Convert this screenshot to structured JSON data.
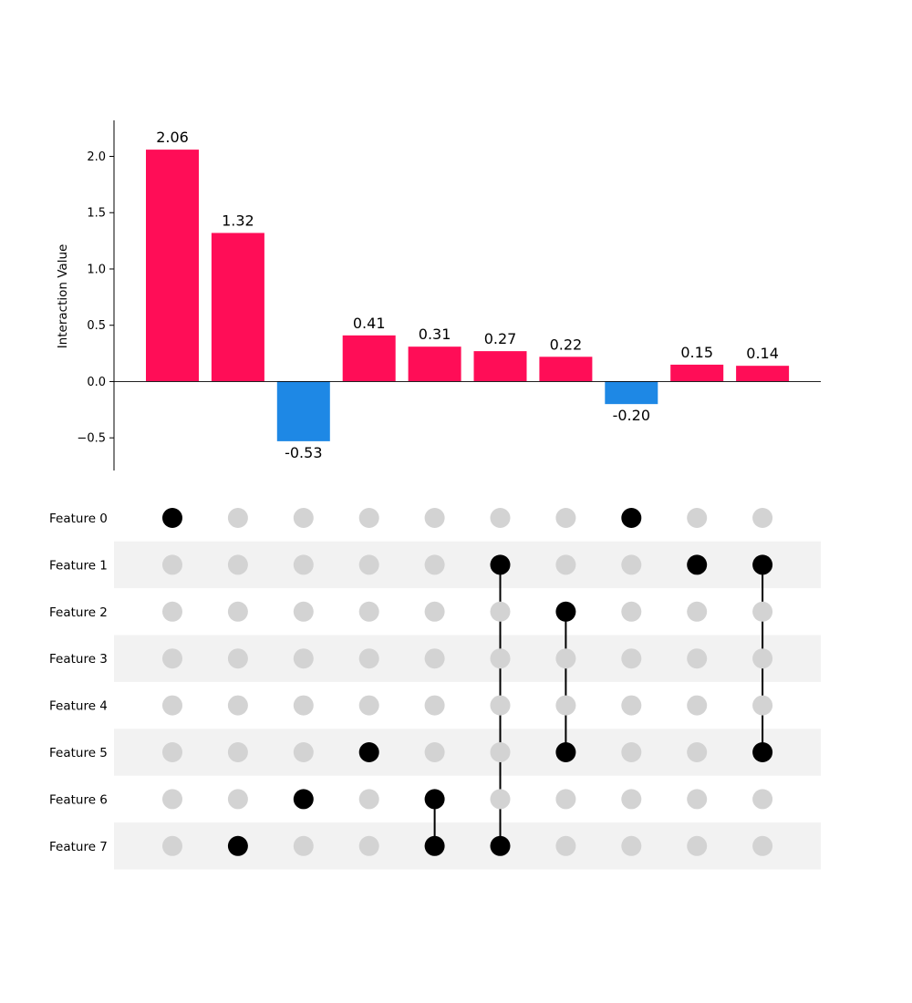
{
  "chart_data": {
    "type": "bar",
    "ylabel": "Interaction Value",
    "ylim": [
      -0.79,
      2.32
    ],
    "yticks": [
      -0.5,
      0.0,
      0.5,
      1.0,
      1.5,
      2.0
    ],
    "ytick_labels": [
      "−0.5",
      "0.0",
      "0.5",
      "1.0",
      "1.5",
      "2.0"
    ],
    "values": [
      2.06,
      1.32,
      -0.53,
      0.41,
      0.31,
      0.27,
      0.22,
      -0.2,
      0.15,
      0.14
    ],
    "value_labels": [
      "2.06",
      "1.32",
      "-0.53",
      "0.41",
      "0.31",
      "0.27",
      "0.22",
      "-0.20",
      "0.15",
      "0.14"
    ],
    "features": [
      "Feature 0",
      "Feature 1",
      "Feature 2",
      "Feature 3",
      "Feature 4",
      "Feature 5",
      "Feature 6",
      "Feature 7"
    ],
    "interactions": [
      [
        0
      ],
      [
        7
      ],
      [
        6
      ],
      [
        5
      ],
      [
        6,
        7
      ],
      [
        1,
        7
      ],
      [
        2,
        5
      ],
      [
        0
      ],
      [
        1
      ],
      [
        1,
        5
      ]
    ],
    "grid": false,
    "legend": "none"
  },
  "colors": {
    "positive": "#ff0d57",
    "negative": "#1e88e5",
    "active_dot": "#000000",
    "inactive_dot": "#d3d3d3",
    "row_band": "#f2f2f2",
    "axis": "#000000"
  }
}
